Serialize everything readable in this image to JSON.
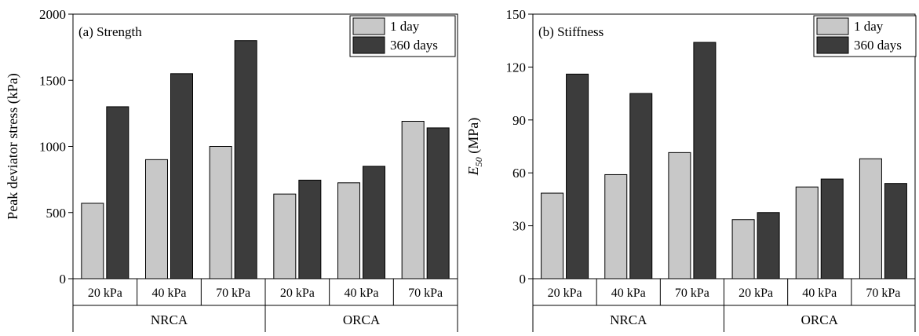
{
  "chart_data": [
    {
      "type": "bar",
      "title": "(a) Strength",
      "ylabel": "Peak deviator stress (kPa)",
      "ylabel_parts": [
        {
          "text": "Peak deviator stress (kPa)",
          "italic": false
        }
      ],
      "ylim": [
        0,
        2000
      ],
      "yticks": [
        0,
        500,
        1000,
        1500,
        2000
      ],
      "grid": false,
      "legend_position": "top-right",
      "categories": [
        "20 kPa",
        "40 kPa",
        "70 kPa",
        "20 kPa",
        "40 kPa",
        "70 kPa"
      ],
      "groups": [
        {
          "label": "NRCA",
          "span": 3
        },
        {
          "label": "ORCA",
          "span": 3
        }
      ],
      "series": [
        {
          "name": "1 day",
          "color": "#c8c8c8",
          "values": [
            570,
            900,
            1000,
            640,
            725,
            1190
          ]
        },
        {
          "name": "360 days",
          "color": "#3c3c3c",
          "values": [
            1300,
            1550,
            1800,
            745,
            850,
            1140
          ]
        }
      ]
    },
    {
      "type": "bar",
      "title": "(b) Stiffness",
      "ylabel": "E50 (MPa)",
      "ylabel_parts": [
        {
          "text": "E",
          "italic": true
        },
        {
          "text": "50",
          "italic": true,
          "sub": true
        },
        {
          "text": " (MPa)",
          "italic": false
        }
      ],
      "ylim": [
        0,
        150
      ],
      "yticks": [
        0,
        30,
        60,
        90,
        120,
        150
      ],
      "grid": false,
      "legend_position": "top-right",
      "categories": [
        "20 kPa",
        "40 kPa",
        "70 kPa",
        "20 kPa",
        "40 kPa",
        "70 kPa"
      ],
      "groups": [
        {
          "label": "NRCA",
          "span": 3
        },
        {
          "label": "ORCA",
          "span": 3
        }
      ],
      "series": [
        {
          "name": "1 day",
          "color": "#c8c8c8",
          "values": [
            48.5,
            59,
            71.5,
            33.5,
            52,
            68
          ]
        },
        {
          "name": "360 days",
          "color": "#3c3c3c",
          "values": [
            116,
            105,
            134,
            37.5,
            56.5,
            54
          ]
        }
      ]
    }
  ]
}
